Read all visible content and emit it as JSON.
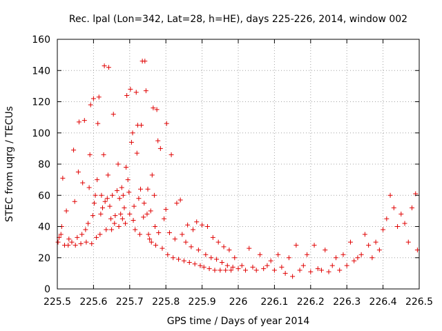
{
  "chart_data": {
    "type": "scatter",
    "title": "Rec. lpal (Lon=342, Lat=28, h=HE), days 225-226, 2014, window 002",
    "xlabel": "GPS time / Days of year 2014",
    "ylabel": "STEC from uqrg / TECUs",
    "xlim": [
      225.5,
      226.5
    ],
    "ylim": [
      0,
      160
    ],
    "x_ticks": [
      225.5,
      225.6,
      225.7,
      225.8,
      225.9,
      226.0,
      226.1,
      226.2,
      226.3,
      226.4,
      226.5
    ],
    "x_tick_labels": [
      "225.5",
      "225.6",
      "225.7",
      "225.8",
      "225.9",
      "226",
      "226.1",
      "226.2",
      "226.3",
      "226.4",
      "226.5"
    ],
    "y_ticks": [
      0,
      20,
      40,
      60,
      80,
      100,
      120,
      140,
      160
    ],
    "y_tick_labels": [
      "0",
      "20",
      "40",
      "60",
      "80",
      "100",
      "120",
      "140",
      "160"
    ],
    "grid": true,
    "marker": "+",
    "color": "#e00000",
    "points": [
      [
        225.502,
        30
      ],
      [
        225.505,
        33
      ],
      [
        225.51,
        35
      ],
      [
        225.512,
        40
      ],
      [
        225.515,
        71
      ],
      [
        225.52,
        28
      ],
      [
        225.525,
        50
      ],
      [
        225.53,
        28
      ],
      [
        225.532,
        32
      ],
      [
        225.54,
        30
      ],
      [
        225.545,
        89
      ],
      [
        225.548,
        56
      ],
      [
        225.55,
        28
      ],
      [
        225.555,
        33
      ],
      [
        225.558,
        75
      ],
      [
        225.56,
        107
      ],
      [
        225.565,
        29
      ],
      [
        225.568,
        35
      ],
      [
        225.57,
        68
      ],
      [
        225.575,
        108
      ],
      [
        225.578,
        38
      ],
      [
        225.58,
        30
      ],
      [
        225.585,
        42
      ],
      [
        225.588,
        65
      ],
      [
        225.59,
        86
      ],
      [
        225.592,
        118
      ],
      [
        225.595,
        29
      ],
      [
        225.598,
        47
      ],
      [
        225.6,
        122
      ],
      [
        225.602,
        55
      ],
      [
        225.605,
        60
      ],
      [
        225.608,
        33
      ],
      [
        225.61,
        70
      ],
      [
        225.612,
        106
      ],
      [
        225.615,
        123
      ],
      [
        225.618,
        35
      ],
      [
        225.62,
        48
      ],
      [
        225.622,
        60
      ],
      [
        225.625,
        52
      ],
      [
        225.628,
        86
      ],
      [
        225.63,
        143
      ],
      [
        225.632,
        56
      ],
      [
        225.635,
        38
      ],
      [
        225.638,
        58
      ],
      [
        225.64,
        73
      ],
      [
        225.642,
        142
      ],
      [
        225.645,
        53
      ],
      [
        225.648,
        45
      ],
      [
        225.65,
        38
      ],
      [
        225.652,
        60
      ],
      [
        225.655,
        112
      ],
      [
        225.658,
        42
      ],
      [
        225.66,
        47
      ],
      [
        225.665,
        63
      ],
      [
        225.668,
        80
      ],
      [
        225.67,
        40
      ],
      [
        225.672,
        58
      ],
      [
        225.675,
        48
      ],
      [
        225.678,
        65
      ],
      [
        225.68,
        45
      ],
      [
        225.682,
        60
      ],
      [
        225.685,
        52
      ],
      [
        225.688,
        42
      ],
      [
        225.69,
        78
      ],
      [
        225.692,
        124
      ],
      [
        225.695,
        70
      ],
      [
        225.698,
        62
      ],
      [
        225.7,
        48
      ],
      [
        225.702,
        128
      ],
      [
        225.705,
        94
      ],
      [
        225.708,
        100
      ],
      [
        225.71,
        44
      ],
      [
        225.712,
        53
      ],
      [
        225.715,
        38
      ],
      [
        225.718,
        126
      ],
      [
        225.72,
        87
      ],
      [
        225.722,
        105
      ],
      [
        225.725,
        58
      ],
      [
        225.728,
        35
      ],
      [
        225.73,
        64
      ],
      [
        225.732,
        105
      ],
      [
        225.735,
        146
      ],
      [
        225.738,
        46
      ],
      [
        225.74,
        55
      ],
      [
        225.742,
        146
      ],
      [
        225.745,
        127
      ],
      [
        225.748,
        48
      ],
      [
        225.75,
        64
      ],
      [
        225.752,
        35
      ],
      [
        225.755,
        32
      ],
      [
        225.758,
        50
      ],
      [
        225.76,
        30
      ],
      [
        225.762,
        73
      ],
      [
        225.765,
        116
      ],
      [
        225.768,
        60
      ],
      [
        225.77,
        40
      ],
      [
        225.772,
        28
      ],
      [
        225.775,
        115
      ],
      [
        225.778,
        95
      ],
      [
        225.78,
        36
      ],
      [
        225.785,
        90
      ],
      [
        225.79,
        26
      ],
      [
        225.795,
        45
      ],
      [
        225.8,
        51
      ],
      [
        225.802,
        106
      ],
      [
        225.805,
        22
      ],
      [
        225.81,
        36
      ],
      [
        225.815,
        86
      ],
      [
        225.82,
        20
      ],
      [
        225.825,
        32
      ],
      [
        225.83,
        55
      ],
      [
        225.835,
        19
      ],
      [
        225.84,
        57
      ],
      [
        225.845,
        35
      ],
      [
        225.85,
        18
      ],
      [
        225.855,
        30
      ],
      [
        225.86,
        41
      ],
      [
        225.865,
        17
      ],
      [
        225.87,
        27
      ],
      [
        225.875,
        38
      ],
      [
        225.88,
        16
      ],
      [
        225.885,
        43
      ],
      [
        225.89,
        25
      ],
      [
        225.895,
        15
      ],
      [
        225.9,
        41
      ],
      [
        225.905,
        14
      ],
      [
        225.91,
        22
      ],
      [
        225.915,
        40
      ],
      [
        225.92,
        13
      ],
      [
        225.925,
        20
      ],
      [
        225.93,
        33
      ],
      [
        225.935,
        12
      ],
      [
        225.94,
        19
      ],
      [
        225.945,
        30
      ],
      [
        225.95,
        12
      ],
      [
        225.955,
        17
      ],
      [
        225.96,
        27
      ],
      [
        225.965,
        12
      ],
      [
        225.97,
        15
      ],
      [
        225.975,
        25
      ],
      [
        225.98,
        12
      ],
      [
        225.985,
        14
      ],
      [
        225.99,
        20
      ],
      [
        226.0,
        13
      ],
      [
        226.01,
        15
      ],
      [
        226.02,
        12
      ],
      [
        226.03,
        26
      ],
      [
        226.04,
        14
      ],
      [
        226.05,
        12
      ],
      [
        226.06,
        22
      ],
      [
        226.07,
        13
      ],
      [
        226.08,
        15
      ],
      [
        226.09,
        18
      ],
      [
        226.1,
        12
      ],
      [
        226.11,
        22
      ],
      [
        226.12,
        14
      ],
      [
        226.13,
        10
      ],
      [
        226.14,
        20
      ],
      [
        226.15,
        8
      ],
      [
        226.16,
        28
      ],
      [
        226.17,
        12
      ],
      [
        226.18,
        15
      ],
      [
        226.19,
        22
      ],
      [
        226.2,
        11
      ],
      [
        226.21,
        28
      ],
      [
        226.22,
        13
      ],
      [
        226.23,
        12
      ],
      [
        226.24,
        25
      ],
      [
        226.25,
        11
      ],
      [
        226.26,
        15
      ],
      [
        226.27,
        20
      ],
      [
        226.28,
        12
      ],
      [
        226.29,
        22
      ],
      [
        226.3,
        15
      ],
      [
        226.31,
        30
      ],
      [
        226.32,
        18
      ],
      [
        226.33,
        20
      ],
      [
        226.34,
        22
      ],
      [
        226.35,
        35
      ],
      [
        226.36,
        28
      ],
      [
        226.37,
        20
      ],
      [
        226.38,
        30
      ],
      [
        226.39,
        25
      ],
      [
        226.4,
        38
      ],
      [
        226.41,
        45
      ],
      [
        226.42,
        60
      ],
      [
        226.43,
        52
      ],
      [
        226.44,
        40
      ],
      [
        226.45,
        48
      ],
      [
        226.46,
        42
      ],
      [
        226.47,
        30
      ],
      [
        226.48,
        52
      ],
      [
        226.49,
        61
      ],
      [
        226.495,
        25
      ]
    ]
  }
}
